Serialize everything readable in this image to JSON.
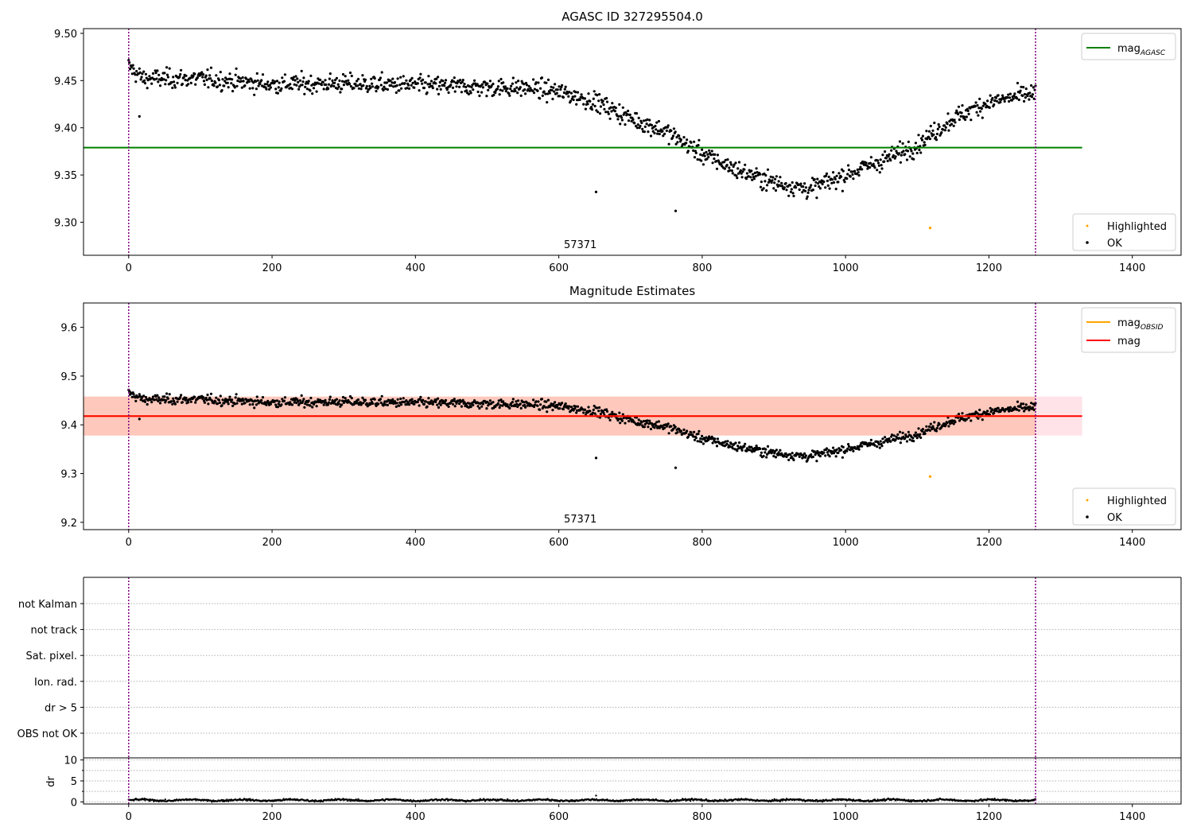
{
  "colors": {
    "points": "#000000",
    "highlight": "#ffa500",
    "agasc_line": "#008000",
    "obsid_line": "#ffa500",
    "mag_line": "#ff0000",
    "band_orange": "#ffa07a",
    "band_pink": "#ffc0cb",
    "vline": "#800080"
  },
  "chart_data": [
    {
      "type": "scatter",
      "title": "AGASC ID 327295504.0",
      "xlim": [
        -63,
        1468
      ],
      "ylim": [
        9.265,
        9.505
      ],
      "xticks": [
        0,
        200,
        400,
        600,
        800,
        1000,
        1200,
        1400
      ],
      "yticks": [
        "9.30",
        "9.35",
        "9.40",
        "9.45",
        "9.50"
      ],
      "obsid_label": "57371",
      "obsid_label_x": 630,
      "vlines": [
        0,
        1265
      ],
      "hlines": [
        {
          "name": "mag_AGASC",
          "value": 9.379,
          "xrange": [
            -63,
            1330
          ],
          "color": "#008000"
        }
      ],
      "legend_lines": [
        {
          "label": "mag",
          "sub": "AGASC",
          "color": "#008000"
        }
      ],
      "legend_points": [
        {
          "label": "Highlighted",
          "color": "#ffa500"
        },
        {
          "label": "OK",
          "color": "#000000"
        }
      ],
      "series": [
        {
          "name": "OK",
          "n_points": 1265,
          "x_range": [
            0,
            1265
          ],
          "trend_x": [
            0,
            20,
            100,
            200,
            300,
            400,
            500,
            560,
            600,
            650,
            700,
            750,
            800,
            850,
            900,
            950,
            1000,
            1050,
            1100,
            1150,
            1200,
            1265
          ],
          "trend_y": [
            9.465,
            9.452,
            9.452,
            9.446,
            9.447,
            9.445,
            9.443,
            9.442,
            9.438,
            9.428,
            9.41,
            9.396,
            9.372,
            9.355,
            9.342,
            9.335,
            9.35,
            9.365,
            9.382,
            9.41,
            9.427,
            9.437
          ],
          "noise": 0.007,
          "outliers": [
            {
              "x": 652,
              "y": 9.332
            },
            {
              "x": 763,
              "y": 9.312
            },
            {
              "x": 15,
              "y": 9.412
            }
          ]
        },
        {
          "name": "Highlighted",
          "points": [
            {
              "x": 1118,
              "y": 9.294
            }
          ]
        }
      ]
    },
    {
      "type": "scatter",
      "title": "Magnitude Estimates",
      "xlim": [
        -63,
        1468
      ],
      "ylim": [
        9.185,
        9.65
      ],
      "xticks": [
        0,
        200,
        400,
        600,
        800,
        1000,
        1200,
        1400
      ],
      "yticks": [
        "9.2",
        "9.3",
        "9.4",
        "9.5",
        "9.6"
      ],
      "obsid_label": "57371",
      "obsid_label_x": 630,
      "vlines": [
        0,
        1265
      ],
      "bands": [
        {
          "ymin": 9.378,
          "ymax": 9.458,
          "xrange": [
            -63,
            1330
          ],
          "color": "#ffc0cb",
          "alpha": 0.45
        },
        {
          "ymin": 9.378,
          "ymax": 9.458,
          "xrange": [
            -63,
            1265
          ],
          "color": "#ffa07a",
          "alpha": 0.4
        }
      ],
      "hlines": [
        {
          "name": "mag_OBSID",
          "value": 9.418,
          "xrange": [
            -63,
            1265
          ],
          "color": "#ffa500"
        },
        {
          "name": "mag",
          "value": 9.418,
          "xrange": [
            -63,
            1330
          ],
          "color": "#ff0000"
        }
      ],
      "legend_lines": [
        {
          "label": "mag",
          "sub": "OBSID",
          "color": "#ffa500"
        },
        {
          "label": "mag",
          "sub": "",
          "color": "#ff0000"
        }
      ],
      "legend_points": [
        {
          "label": "Highlighted",
          "color": "#ffa500"
        },
        {
          "label": "OK",
          "color": "#000000"
        }
      ],
      "series": [
        {
          "name": "OK",
          "same_as": "panel_1"
        },
        {
          "name": "Highlighted",
          "points": [
            {
              "x": 1118,
              "y": 9.294
            }
          ]
        }
      ]
    },
    {
      "type": "table",
      "title": "",
      "xlim": [
        -63,
        1468
      ],
      "flags": [
        "not Kalman",
        "not track",
        "Sat. pixel.",
        "Ion. rad.",
        "dr > 5",
        "OBS not OK"
      ],
      "flag_points": [],
      "vlines": [
        0,
        1265
      ],
      "grid": "dotted horizontal"
    },
    {
      "type": "scatter",
      "title": "",
      "ylabel": "dr",
      "xlim": [
        -63,
        1468
      ],
      "ylim": [
        -0.5,
        10.5
      ],
      "xticks": [
        0,
        200,
        400,
        600,
        800,
        1000,
        1200,
        1400
      ],
      "yticks": [
        "0",
        "5",
        "10"
      ],
      "vlines": [
        0,
        1265
      ],
      "series": [
        {
          "name": "dr",
          "n_points": 1265,
          "x_range": [
            0,
            1265
          ],
          "typical": 0.4,
          "spread": 0.3,
          "outliers": [
            {
              "x": 652,
              "y": 1.5
            }
          ]
        }
      ]
    }
  ]
}
